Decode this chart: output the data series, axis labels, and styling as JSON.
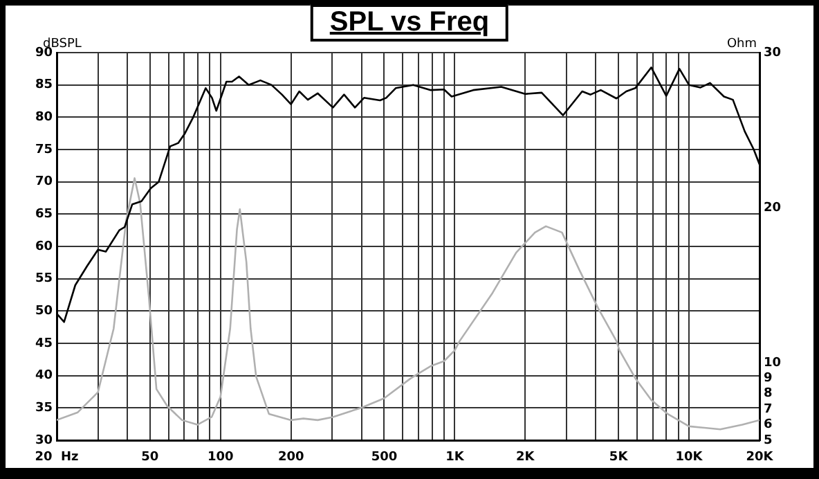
{
  "chart_data": {
    "type": "line",
    "title": "SPL vs Freq",
    "ylabel": "dBSPL",
    "y2label": "Ohm",
    "log": "x",
    "grid": true,
    "legend": false,
    "marker": "none",
    "line_style": "solid",
    "xlim": [
      20,
      20000
    ],
    "xticks": [
      {
        "value": 20,
        "label": "20  Hz"
      },
      {
        "value": 30,
        "label": null
      },
      {
        "value": 40,
        "label": null
      },
      50,
      {
        "value": 60,
        "label": null
      },
      {
        "value": 70,
        "label": null
      },
      {
        "value": 80,
        "label": null
      },
      {
        "value": 90,
        "label": null
      },
      100,
      200,
      {
        "value": 300,
        "label": null
      },
      {
        "value": 400,
        "label": null
      },
      500,
      {
        "value": 600,
        "label": null
      },
      {
        "value": 700,
        "label": null
      },
      {
        "value": 800,
        "label": null
      },
      {
        "value": 900,
        "label": null
      },
      {
        "value": 1000,
        "label": "1K"
      },
      {
        "value": 2000,
        "label": "2K"
      },
      {
        "value": 3000,
        "label": null
      },
      {
        "value": 4000,
        "label": null
      },
      {
        "value": 5000,
        "label": "5K"
      },
      {
        "value": 6000,
        "label": null
      },
      {
        "value": 7000,
        "label": null
      },
      {
        "value": 8000,
        "label": null
      },
      {
        "value": 9000,
        "label": null
      },
      {
        "value": 10000,
        "label": "10K"
      },
      {
        "value": 20000,
        "label": "20K"
      }
    ],
    "ylim": [
      30,
      90
    ],
    "yticks": [
      30,
      35,
      40,
      45,
      50,
      55,
      60,
      65,
      70,
      75,
      80,
      85,
      90
    ],
    "y2lim": [
      5,
      30
    ],
    "y2ticks": [
      5,
      6,
      7,
      8,
      9,
      10,
      20,
      30
    ],
    "series": [
      {
        "color": "#000000",
        "x": [
          20,
          21.5,
          24,
          27,
          30,
          32.4,
          37,
          39,
          42,
          46,
          50.4,
          54.5,
          61,
          66,
          70.5,
          76.5,
          86.5,
          92,
          96,
          106,
          112,
          120,
          132,
          148,
          165,
          183,
          200,
          217,
          236,
          260,
          302,
          337,
          375,
          410,
          480,
          510,
          560,
          665,
          790,
          900,
          970,
          1200,
          1580,
          2000,
          2350,
          2900,
          3500,
          3800,
          4200,
          4900,
          5400,
          5900,
          6900,
          8000,
          9100,
          10000,
          11200,
          12300,
          14100,
          15400,
          17300,
          18900,
          20000
        ],
        "values": [
          49.6,
          48.3,
          54,
          57,
          59.5,
          59.2,
          62.5,
          63,
          66.5,
          67,
          69,
          70,
          75.5,
          76,
          77.5,
          80,
          84.5,
          83,
          81,
          85.5,
          85.5,
          86.3,
          85,
          85.7,
          85,
          83.5,
          82,
          84,
          82.7,
          83.7,
          81.5,
          83.5,
          81.5,
          83,
          82.6,
          83,
          84.5,
          85,
          84.2,
          84.3,
          83.2,
          84.2,
          84.7,
          83.6,
          83.8,
          80.3,
          84,
          83.5,
          84.2,
          82.9,
          84,
          84.5,
          87.7,
          83.3,
          87.5,
          85,
          84.6,
          85.3,
          83.2,
          82.7,
          77.8,
          75,
          72.7
        ]
      },
      {
        "color": "#b0b0b0",
        "axis": "y2",
        "x": [
          20,
          24.6,
          30,
          35,
          39.6,
          43,
          45.4,
          49.5,
          53.3,
          59.3,
          68.5,
          79.7,
          91.7,
          100,
          110,
          117.6,
          121,
          129,
          134.5,
          142,
          161,
          200,
          226,
          260,
          302,
          400,
          499,
          650,
          700,
          795,
          900,
          1000,
          1050,
          1450,
          1830,
          2200,
          2450,
          2870,
          3400,
          4100,
          4900,
          5050,
          5900,
          6900,
          8100,
          10000,
          13600,
          16900,
          20000
        ],
        "values": [
          6.3,
          6.8,
          8.1,
          12.2,
          19.2,
          21.9,
          20.3,
          14.2,
          8.3,
          7.2,
          6.3,
          6,
          6.5,
          7.8,
          12.2,
          18.6,
          19.9,
          16.5,
          12.2,
          9.1,
          6.7,
          6.3,
          6.4,
          6.3,
          6.5,
          7.1,
          7.7,
          9,
          9.3,
          9.8,
          10.1,
          10.8,
          11.4,
          14.5,
          17.1,
          18.4,
          18.8,
          18.4,
          16,
          13.5,
          11.4,
          10.8,
          9,
          7.6,
          6.7,
          5.9,
          5.7,
          6,
          6.3
        ]
      }
    ]
  }
}
